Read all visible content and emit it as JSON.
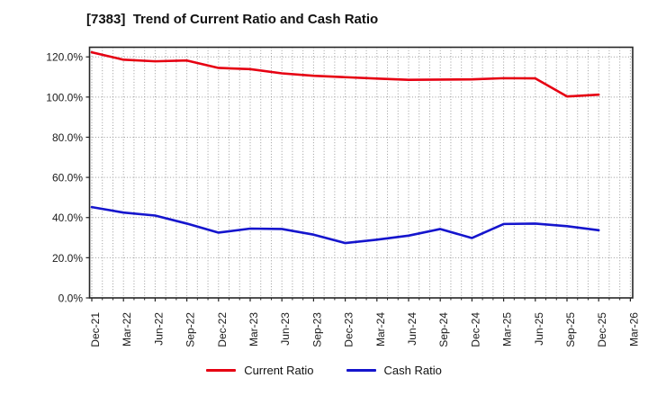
{
  "chart_data": {
    "type": "line",
    "title": "[7383]  Trend of Current Ratio and Cash Ratio",
    "categories": [
      "Dec-21",
      "Mar-22",
      "Jun-22",
      "Sep-22",
      "Dec-22",
      "Mar-23",
      "Jun-23",
      "Sep-23",
      "Dec-23",
      "Mar-24",
      "Jun-24",
      "Sep-24",
      "Dec-24",
      "Mar-25",
      "Jun-25",
      "Sep-25",
      "Dec-25",
      "Mar-26"
    ],
    "series": [
      {
        "name": "Current Ratio",
        "color": "#e60012",
        "values": [
          122.3,
          118.6,
          117.8,
          118.2,
          114.5,
          113.9,
          111.8,
          110.6,
          109.9,
          109.2,
          108.6,
          108.7,
          108.8,
          109.4,
          109.3,
          100.3,
          101.2
        ]
      },
      {
        "name": "Cash Ratio",
        "color": "#1515cd",
        "values": [
          45.2,
          42.5,
          41.0,
          37.0,
          32.5,
          34.5,
          34.3,
          31.5,
          27.3,
          29.0,
          31.0,
          34.3,
          29.8,
          36.8,
          37.0,
          35.7,
          33.7
        ]
      }
    ],
    "xlabel": "",
    "ylabel": "",
    "ylim": [
      0,
      124.8
    ],
    "yticks": [
      0,
      20,
      40,
      60,
      80,
      100,
      120
    ],
    "ytick_labels": [
      "0.0%",
      "20.0%",
      "40.0%",
      "60.0%",
      "80.0%",
      "100.0%",
      "120.0%"
    ],
    "grid": "dotted",
    "minor_x_grid": "monthly",
    "legend_position": "bottom-center",
    "legend_entries": [
      "Current Ratio",
      "Cash Ratio"
    ]
  },
  "styles": {
    "grid_color": "#9a9a9a",
    "border_color": "#262626",
    "text_color": "#1a1a1a",
    "background": "#ffffff"
  }
}
